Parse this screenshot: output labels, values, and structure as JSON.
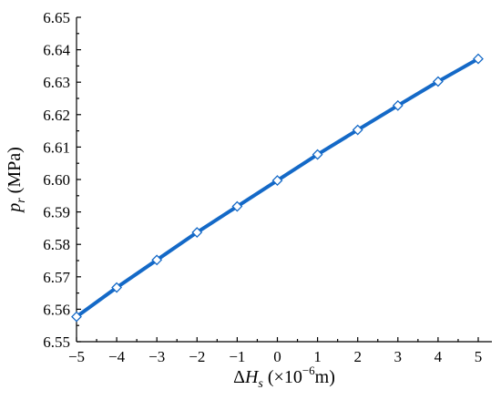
{
  "chart_data": {
    "type": "line",
    "title": "",
    "xlabel": {
      "prefix": "Δ",
      "symbol": "H",
      "subscript": "s",
      "unit_open": " (×10",
      "unit_exp": "−6",
      "unit_close": "m)"
    },
    "ylabel": {
      "symbol": "p",
      "subscript": "r",
      "unit": " (MPa)"
    },
    "xlim": [
      -5,
      5
    ],
    "ylim": [
      6.55,
      6.65
    ],
    "x_ticks": [
      -5,
      -4,
      -3,
      -2,
      -1,
      0,
      1,
      2,
      3,
      4,
      5
    ],
    "x_tick_labels": [
      "−5",
      "−4",
      "−3",
      "−2",
      "−1",
      "0",
      "1",
      "2",
      "3",
      "4",
      "5"
    ],
    "y_ticks": [
      6.55,
      6.56,
      6.57,
      6.58,
      6.59,
      6.6,
      6.61,
      6.62,
      6.63,
      6.64,
      6.65
    ],
    "y_tick_labels": [
      "6.55",
      "6.56",
      "6.57",
      "6.58",
      "6.59",
      "6.60",
      "6.61",
      "6.62",
      "6.63",
      "6.64",
      "6.65"
    ],
    "grid": false,
    "legend": "none",
    "series": [
      {
        "color": "#1469c7",
        "marker": "open-diamond",
        "x": [
          -5,
          -4,
          -3,
          -2,
          -1,
          0,
          1,
          2,
          3,
          4,
          5
        ],
        "y": [
          6.5577,
          6.5667,
          6.5752,
          6.5837,
          6.5917,
          6.5997,
          6.6077,
          6.6153,
          6.6228,
          6.6302,
          6.6372
        ]
      }
    ]
  }
}
